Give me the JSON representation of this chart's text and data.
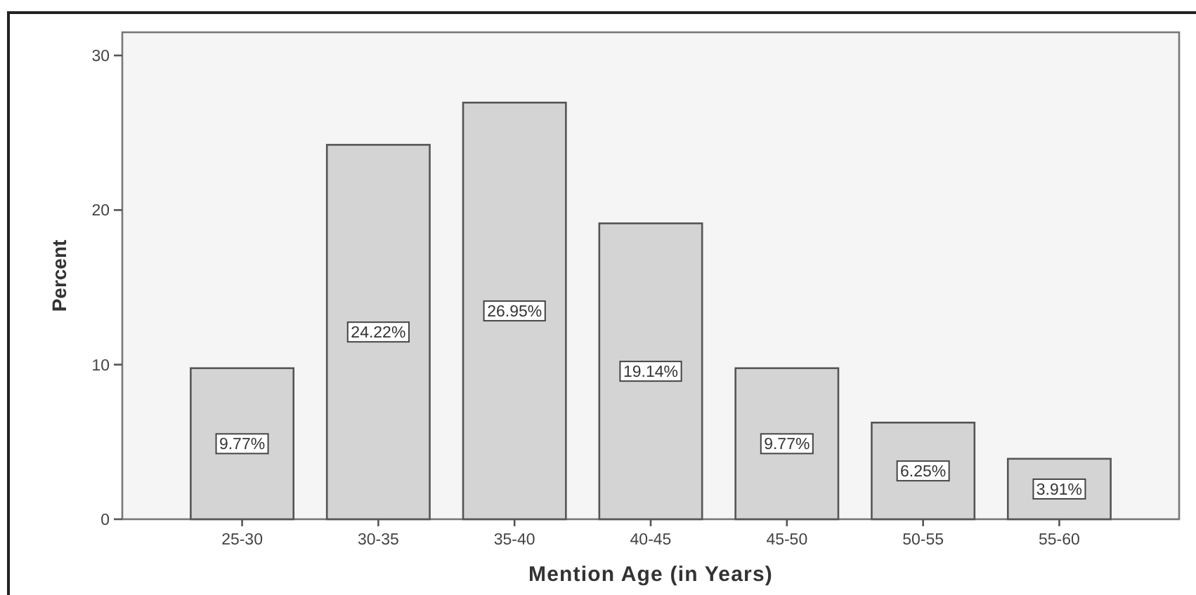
{
  "chart_data": {
    "type": "bar",
    "xlabel": "Mention Age (in Years)",
    "ylabel": "Percent",
    "categories": [
      "25-30",
      "30-35",
      "35-40",
      "40-45",
      "45-50",
      "50-55",
      "55-60"
    ],
    "values": [
      9.77,
      24.22,
      26.95,
      19.14,
      9.77,
      6.25,
      3.91
    ],
    "value_labels": [
      "9.77%",
      "24.22%",
      "26.95%",
      "19.14%",
      "9.77%",
      "6.25%",
      "3.91%"
    ],
    "color": "#d4d4d4",
    "ylim": [
      0,
      31.5
    ],
    "yticks": [
      0,
      10,
      20,
      30
    ],
    "grid": false
  }
}
